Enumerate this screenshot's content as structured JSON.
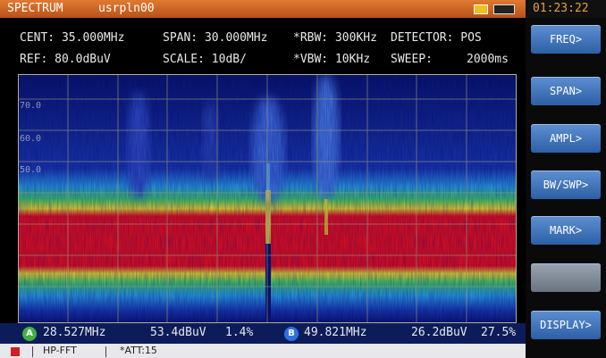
{
  "top_bar": {
    "mode": "SPECTRUM",
    "device": "usrpln00",
    "time": "01:23:22"
  },
  "params": {
    "row1": [
      "CENT: 35.000MHz",
      "SPAN:  30.000MHz",
      "*RBW: 300KHz",
      "DETECTOR:  POS"
    ],
    "row2": [
      "REF:  80.0dBuV",
      "SCALE: 10dB/",
      "*VBW: 10KHz",
      "SWEEP:",
      "2000ms"
    ]
  },
  "display": {
    "y_labels": [
      "70.0",
      "60.0",
      "50.0"
    ]
  },
  "markers": [
    {
      "badge": "A",
      "freq": "28.527MHz",
      "level": "53.4dBuV",
      "pct": "1.4%"
    },
    {
      "badge": "B",
      "freq": "49.821MHz",
      "level": "26.2dBuV",
      "pct": "27.5%"
    }
  ],
  "menu": [
    "FREQ>",
    "SPAN>",
    "AMPL>",
    "BW/SWP>",
    "MARK>",
    "DISPLAY>"
  ],
  "status": {
    "items": [
      "HP-FFT",
      "*ATT:15"
    ]
  }
}
